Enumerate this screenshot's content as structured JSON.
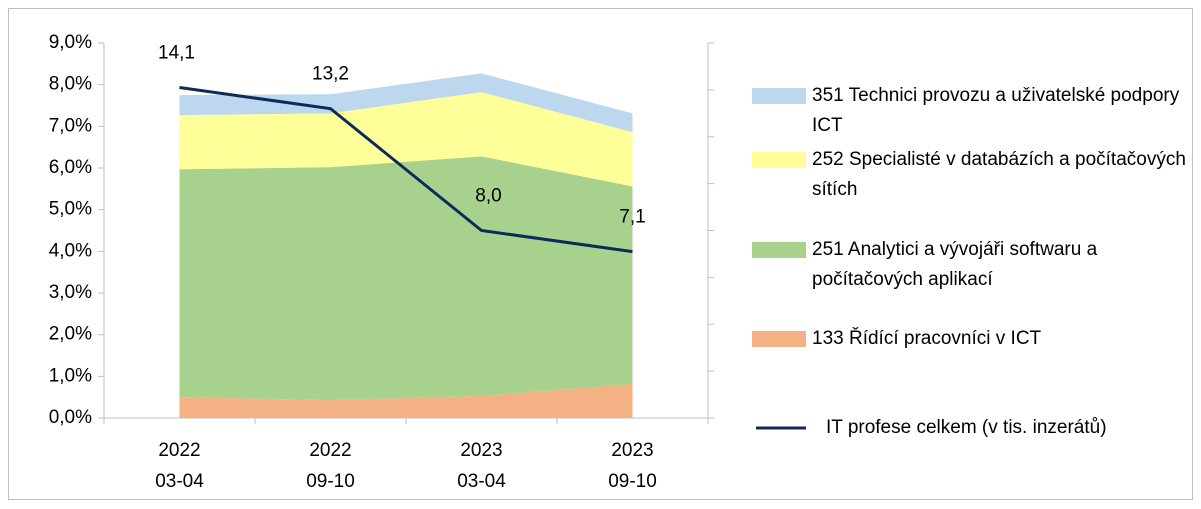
{
  "chart_data": {
    "type": "stacked-area-line",
    "categories": [
      "2022 03-04",
      "2022 09-10",
      "2023 03-04",
      "2023 09-10"
    ],
    "series": [
      {
        "name": "133 Řídící pracovníci v ICT",
        "color": "#f4b183",
        "values": [
          0.5,
          0.43,
          0.53,
          0.82
        ]
      },
      {
        "name": "251 Analytici a vývojáři softwaru a počítačových aplikací",
        "color": "#a9d18e",
        "values": [
          5.47,
          5.59,
          5.75,
          4.74
        ]
      },
      {
        "name": "252 Specialisté v databázích a počítačových sítích",
        "color": "#ffff99",
        "values": [
          1.3,
          1.29,
          1.54,
          1.3
        ]
      },
      {
        "name": "351 Technici provozu a uživatelské podpory ICT",
        "color": "#bdd7ee",
        "values": [
          0.48,
          0.46,
          0.45,
          0.45
        ]
      },
      {
        "name": "IT profese celkem (v tis. inzerátů)",
        "color": "#0e2a5a",
        "axis": "y2",
        "values": [
          14.1,
          13.2,
          8.0,
          7.1
        ],
        "value_labels": [
          "14,1",
          "13,2",
          "8,0",
          "7,1"
        ]
      }
    ],
    "ylim": [
      0,
      9
    ],
    "yticks": [
      {
        "value": 0,
        "label": "0,0%"
      },
      {
        "value": 1,
        "label": "1,0%"
      },
      {
        "value": 2,
        "label": "2,0%"
      },
      {
        "value": 3,
        "label": "3,0%"
      },
      {
        "value": 4,
        "label": "4,0%"
      },
      {
        "value": 5,
        "label": "5,0%"
      },
      {
        "value": 6,
        "label": "6,0%"
      },
      {
        "value": 7,
        "label": "7,0%"
      },
      {
        "value": 8,
        "label": "8,0%"
      },
      {
        "value": 9,
        "label": "9,0%"
      }
    ],
    "y2lim": [
      0,
      16
    ],
    "y2ticks": [
      0,
      2,
      4,
      6,
      8,
      10,
      12,
      14,
      16
    ]
  }
}
